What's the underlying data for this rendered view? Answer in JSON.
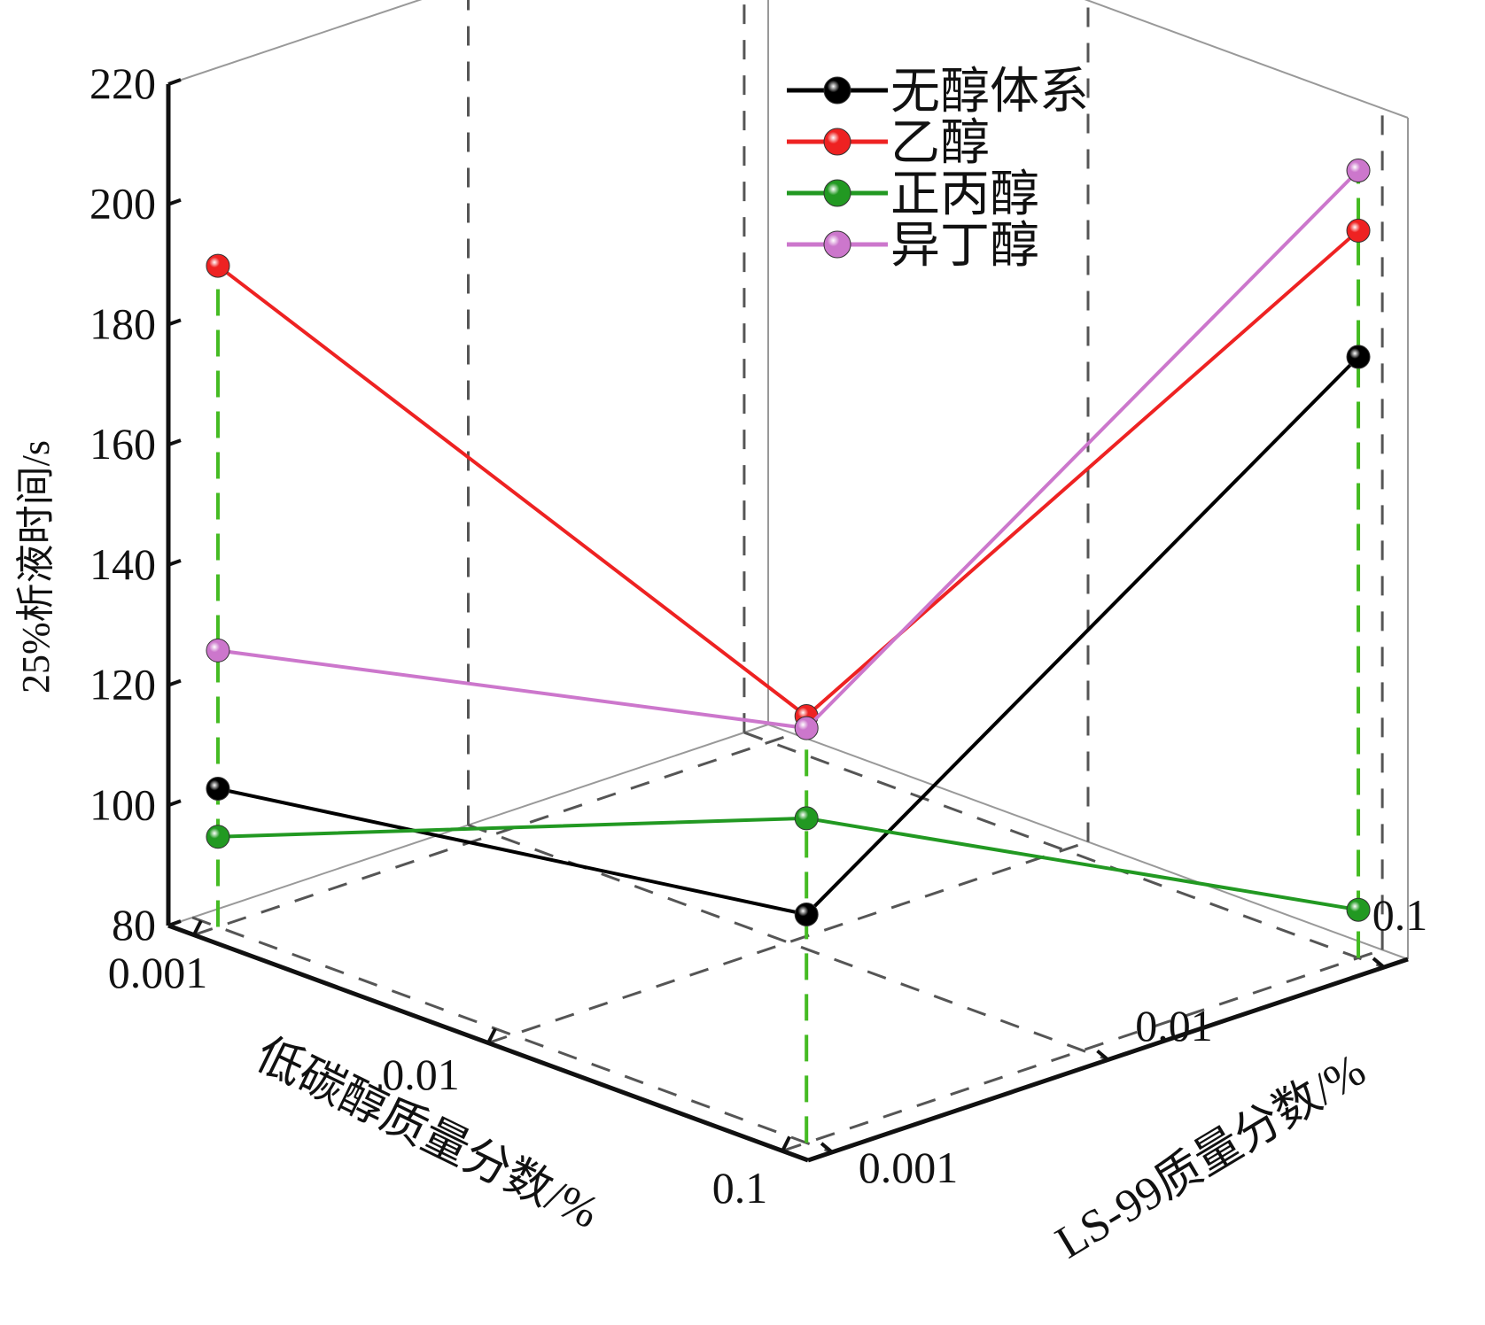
{
  "chart_data": {
    "type": "scatter3d-line",
    "zlabel": "25%析液时间/s",
    "xlabel": "低碳醇质量分数/%",
    "ylabel": "LS-99质量分数/%",
    "z_ticks": [
      "80",
      "100",
      "120",
      "140",
      "160",
      "180",
      "200",
      "220"
    ],
    "z_tick_values": [
      80,
      100,
      120,
      140,
      160,
      180,
      200,
      220
    ],
    "zlim": [
      80,
      220
    ],
    "x_ticks": [
      "0.001",
      "0.01",
      "0.1"
    ],
    "y_ticks": [
      "0.001",
      "0.01",
      "0.1"
    ],
    "grid": true,
    "legend_position": "top-center",
    "series": [
      {
        "name": "无醇体系",
        "color": "#000000",
        "points": [
          {
            "x": "0.001",
            "y": "0.001",
            "z": 103
          },
          {
            "x": "0.1",
            "y": "0.001",
            "z": 118
          },
          {
            "x": "0.1",
            "y": "0.1",
            "z": 180
          }
        ]
      },
      {
        "name": "乙醇",
        "color": "#ee2222",
        "points": [
          {
            "x": "0.001",
            "y": "0.001",
            "z": 190
          },
          {
            "x": "0.1",
            "y": "0.001",
            "z": 151
          },
          {
            "x": "0.1",
            "y": "0.1",
            "z": 201
          }
        ]
      },
      {
        "name": "正丙醇",
        "color": "#229922",
        "points": [
          {
            "x": "0.001",
            "y": "0.001",
            "z": 95
          },
          {
            "x": "0.1",
            "y": "0.001",
            "z": 134
          },
          {
            "x": "0.1",
            "y": "0.1",
            "z": 88
          }
        ]
      },
      {
        "name": "异丁醇",
        "color": "#cc77cc",
        "points": [
          {
            "x": "0.001",
            "y": "0.001",
            "z": 126
          },
          {
            "x": "0.1",
            "y": "0.001",
            "z": 149
          },
          {
            "x": "0.1",
            "y": "0.1",
            "z": 211
          }
        ]
      }
    ]
  }
}
